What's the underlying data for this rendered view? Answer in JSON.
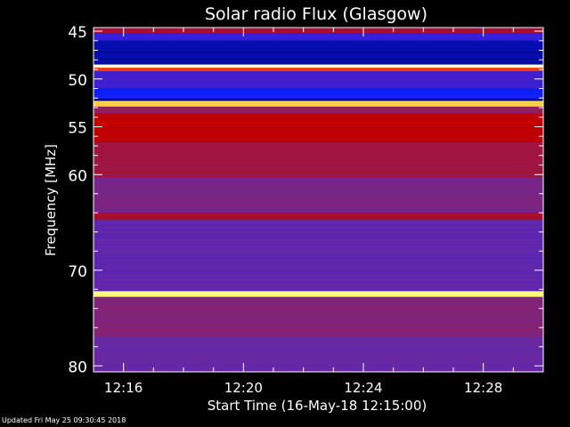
{
  "chart_data": {
    "type": "heatmap",
    "title": "Solar radio Flux (Glasgow)",
    "xlabel": "Start Time (16-May-18 12:15:00)",
    "ylabel": "Frequency [MHz]",
    "x_range": [
      "12:15",
      "12:30"
    ],
    "y_range": [
      44.7,
      80.6
    ],
    "y_inverted": true,
    "x_ticks": [
      "12:16",
      "12:20",
      "12:24",
      "12:28"
    ],
    "y_ticks": [
      45,
      50,
      55,
      60,
      70,
      80
    ],
    "colormap": [
      "#000000",
      "#00006a",
      "#1020ff",
      "#5020c0",
      "#6a2aa0",
      "#902060",
      "#c00000",
      "#ff2000",
      "#ff9a20",
      "#ffff60",
      "#ffffff"
    ],
    "bands": [
      {
        "freq_from": 44.7,
        "freq_to": 45.2,
        "intensity": 0.55
      },
      {
        "freq_from": 45.2,
        "freq_to": 46.0,
        "intensity": 0.26
      },
      {
        "freq_from": 46.0,
        "freq_to": 48.5,
        "intensity": 0.14
      },
      {
        "freq_from": 48.5,
        "freq_to": 48.85,
        "intensity": 0.96
      },
      {
        "freq_from": 48.85,
        "freq_to": 49.2,
        "intensity": 0.72
      },
      {
        "freq_from": 49.2,
        "freq_to": 51.0,
        "intensity": 0.27
      },
      {
        "freq_from": 51.0,
        "freq_to": 52.1,
        "intensity": 0.2
      },
      {
        "freq_from": 52.1,
        "freq_to": 52.3,
        "intensity": 0.1
      },
      {
        "freq_from": 52.3,
        "freq_to": 52.9,
        "intensity": 0.86
      },
      {
        "freq_from": 52.9,
        "freq_to": 53.6,
        "intensity": 0.5
      },
      {
        "freq_from": 53.6,
        "freq_to": 56.6,
        "intensity": 0.6
      },
      {
        "freq_from": 56.6,
        "freq_to": 60.3,
        "intensity": 0.53
      },
      {
        "freq_from": 60.3,
        "freq_to": 64.0,
        "intensity": 0.44
      },
      {
        "freq_from": 64.0,
        "freq_to": 64.7,
        "intensity": 0.56
      },
      {
        "freq_from": 64.7,
        "freq_to": 72.2,
        "intensity": 0.36
      },
      {
        "freq_from": 72.2,
        "freq_to": 72.8,
        "intensity": 0.92
      },
      {
        "freq_from": 72.8,
        "freq_to": 77.0,
        "intensity": 0.46
      },
      {
        "freq_from": 77.0,
        "freq_to": 80.6,
        "intensity": 0.39
      }
    ]
  },
  "footer": {
    "updated": "Updated Fri May 25 09:30:45 2018"
  }
}
